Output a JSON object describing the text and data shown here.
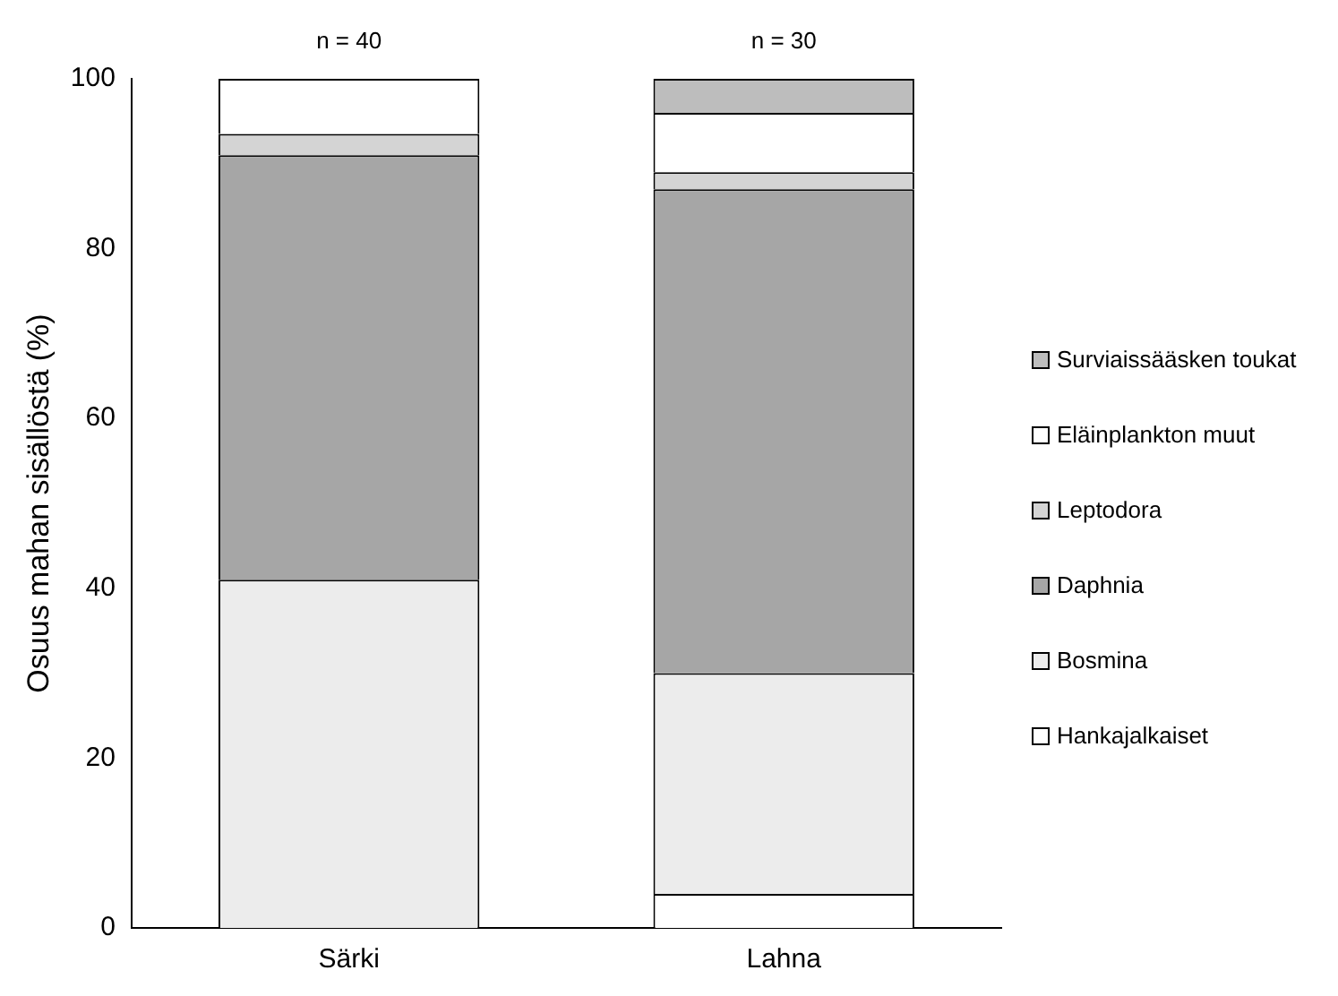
{
  "chart_data": {
    "type": "bar",
    "stacked": true,
    "ylabel": "Osuus mahan sisällöstä (%)",
    "categories": [
      "Särki",
      "Lahna"
    ],
    "series": [
      {
        "name": "Hankajalkaiset",
        "color": "#ffffff",
        "values": [
          0,
          4
        ]
      },
      {
        "name": "Bosmina",
        "color": "#ececec",
        "values": [
          41,
          26
        ]
      },
      {
        "name": "Daphnia",
        "color": "#a6a6a6",
        "values": [
          50,
          57
        ]
      },
      {
        "name": "Leptodora",
        "color": "#d4d4d4",
        "values": [
          2.5,
          2
        ]
      },
      {
        "name": "Eläinplankton muut",
        "color": "#ffffff",
        "values": [
          6.5,
          7
        ]
      },
      {
        "name": "Surviaissääsken toukat",
        "color": "#bdbdbd",
        "values": [
          0,
          4
        ]
      }
    ],
    "ylim": [
      0,
      100
    ],
    "yticks": [
      0,
      20,
      40,
      60,
      80,
      100
    ],
    "grid": false,
    "legend": "right",
    "annotations": [
      {
        "text": "n = 40",
        "x": "Särki",
        "y": 100
      },
      {
        "text": "n = 30",
        "x": "Lahna",
        "y": 100
      }
    ]
  }
}
